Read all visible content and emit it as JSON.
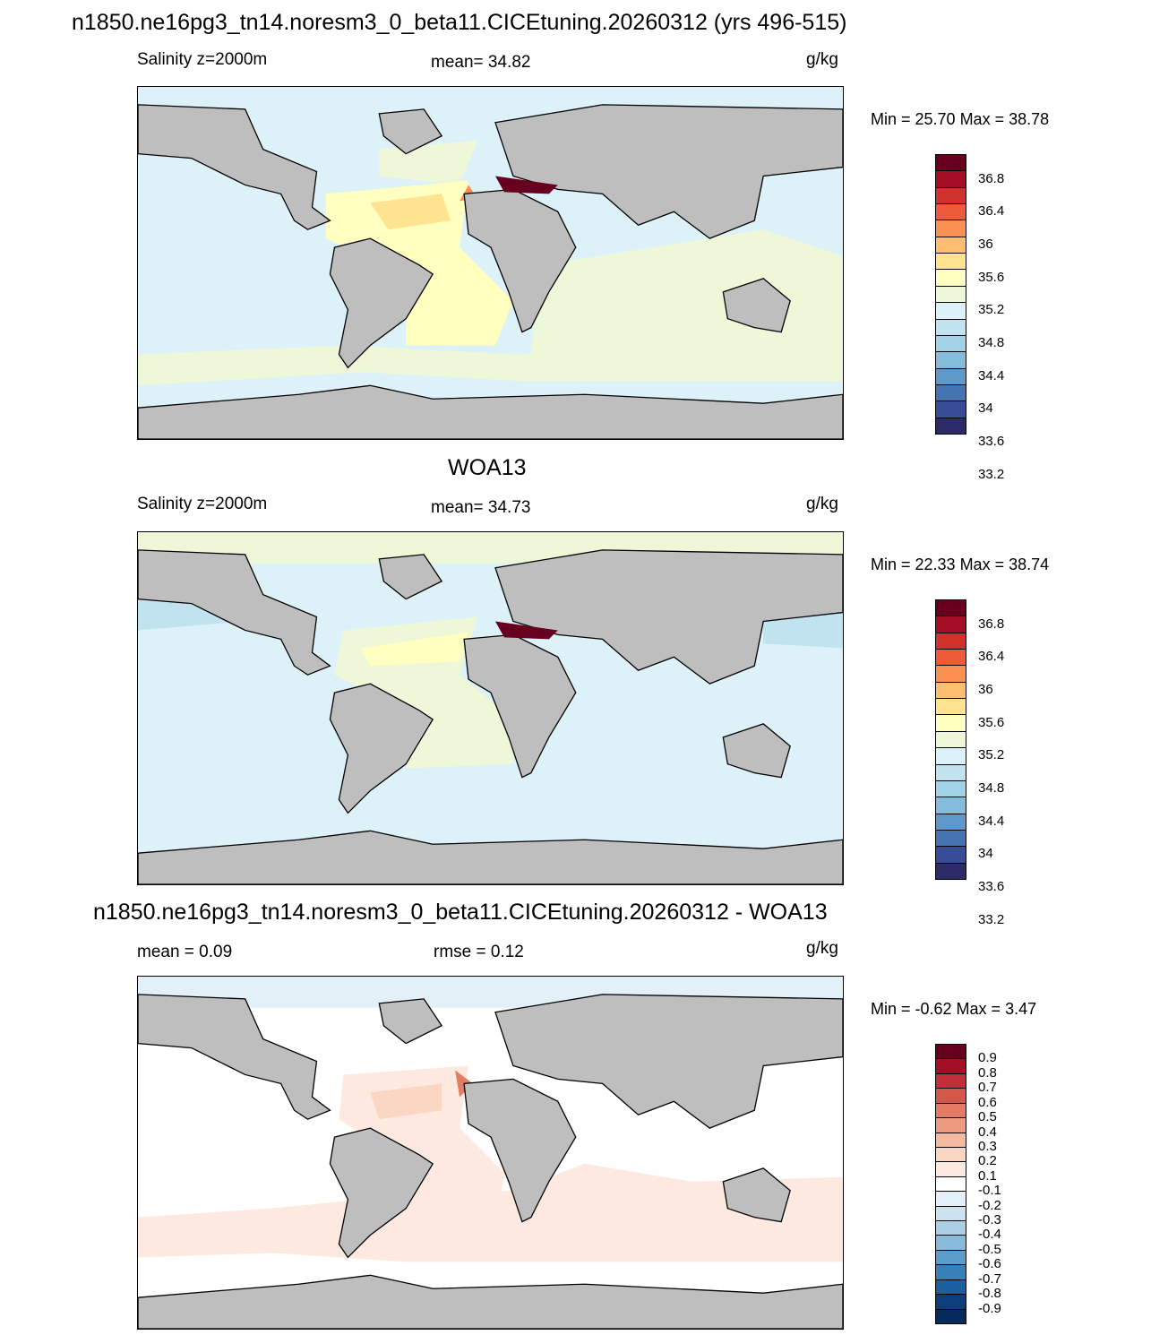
{
  "panel1": {
    "title": "n1850.ne16pg3_tn14.noresm3_0_beta11.CICEtuning.20260312 (yrs 496-515)",
    "left": "Salinity z=2000m",
    "center": "mean=  34.82",
    "right": "g/kg",
    "minmax": "Min =  25.70 Max =  38.78"
  },
  "panel2": {
    "title": "WOA13",
    "left": "Salinity z=2000m",
    "center": "mean=  34.73",
    "right": "g/kg",
    "minmax": "Min =  22.33 Max =  38.74"
  },
  "panel3": {
    "title": "n1850.ne16pg3_tn14.noresm3_0_beta11.CICEtuning.20260312 - WOA13",
    "left": "mean =   0.09",
    "center": "rmse =   0.12",
    "right": "g/kg",
    "minmax": "Min =  -0.62 Max =   3.47"
  },
  "colorbar_salinity": {
    "labels": [
      "36.8",
      "36.4",
      "36",
      "35.6",
      "35.2",
      "34.8",
      "34.4",
      "34",
      "33.6",
      "33.2"
    ],
    "colors": [
      "#67001f",
      "#a50f26",
      "#d0312b",
      "#ef5a38",
      "#f98f50",
      "#fdbf6f",
      "#fee391",
      "#ffffbf",
      "#eef7d8",
      "#ddf1f8",
      "#c1e3ef",
      "#a2d2e6",
      "#83bddb",
      "#5f99c9",
      "#4474b2",
      "#374d98",
      "#2d2a68"
    ]
  },
  "colorbar_difference": {
    "labels": [
      "0.9",
      "0.8",
      "0.7",
      "0.6",
      "0.5",
      "0.4",
      "0.3",
      "0.2",
      "0.1",
      "-0.1",
      "-0.2",
      "-0.3",
      "-0.4",
      "-0.5",
      "-0.6",
      "-0.7",
      "-0.8",
      "-0.9"
    ],
    "colors": [
      "#67001f",
      "#a50f26",
      "#c0303a",
      "#d4584a",
      "#e27c64",
      "#ec9a80",
      "#f5b9a0",
      "#fbd6c3",
      "#fde9df",
      "#ffffff",
      "#e3f0f7",
      "#cce3ef",
      "#abd0e5",
      "#87badb",
      "#5b9ecb",
      "#3880ba",
      "#1c5fa0",
      "#0b3e7a",
      "#062a5c"
    ]
  },
  "map_colors": {
    "land": "#bebebe",
    "coast": "#000000"
  }
}
